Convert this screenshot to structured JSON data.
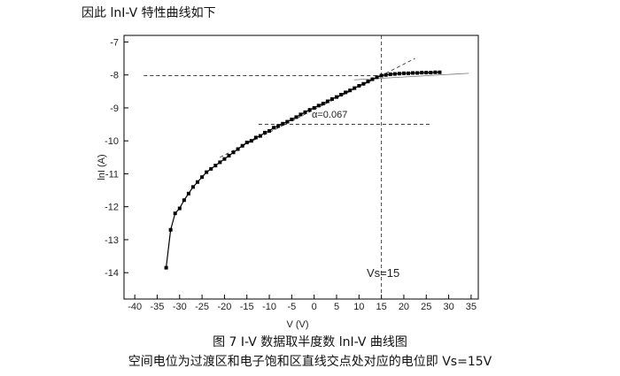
{
  "document": {
    "intro": "因此 lnI-V 特性曲线如下",
    "caption": "图 7 I-V 数据取半度数 lnI-V 曲线图",
    "note": "空间电位为过渡区和电子饱和区直线交点处对应的电位即 Vs=15V"
  },
  "chart_data": {
    "type": "line",
    "x_label": "V  (V)",
    "y_label": "lnI (A)",
    "color": "#000000",
    "x": [
      -33,
      -32,
      -31,
      -30,
      -29,
      -28,
      -27,
      -26,
      -25,
      -24,
      -23,
      -22,
      -21,
      -20,
      -19,
      -18,
      -17,
      -16,
      -15,
      -14,
      -13,
      -12,
      -11,
      -10,
      -9,
      -8,
      -7,
      -6,
      -5,
      -4,
      -3,
      -2,
      -1,
      0,
      1,
      2,
      3,
      4,
      5,
      6,
      7,
      8,
      9,
      10,
      11,
      12,
      13,
      14,
      15,
      16,
      17,
      18,
      19,
      20,
      21,
      22,
      23,
      24,
      25,
      26,
      27,
      28
    ],
    "values": [
      -13.85,
      -12.7,
      -12.2,
      -12.05,
      -11.8,
      -11.6,
      -11.4,
      -11.25,
      -11.1,
      -10.95,
      -10.85,
      -10.75,
      -10.65,
      -10.55,
      -10.45,
      -10.35,
      -10.25,
      -10.15,
      -10.05,
      -10.0,
      -9.9,
      -9.85,
      -9.75,
      -9.7,
      -9.6,
      -9.55,
      -9.48,
      -9.42,
      -9.35,
      -9.28,
      -9.2,
      -9.13,
      -9.06,
      -9.0,
      -8.93,
      -8.87,
      -8.8,
      -8.73,
      -8.67,
      -8.6,
      -8.53,
      -8.47,
      -8.4,
      -8.33,
      -8.27,
      -8.2,
      -8.13,
      -8.07,
      -8.02,
      -8.0,
      -7.98,
      -7.97,
      -7.96,
      -7.95,
      -7.95,
      -7.94,
      -7.94,
      -7.93,
      -7.93,
      -7.93,
      -7.92,
      -7.92
    ],
    "xlim": [
      -42.4,
      36.6
    ],
    "xticks": [
      -40,
      -35,
      -30,
      -25,
      -20,
      -15,
      -10,
      -5,
      0,
      5,
      10,
      15,
      20,
      25,
      30,
      35
    ],
    "ylim": [
      -14.8,
      -6.8
    ],
    "yticks": [
      -14,
      -13,
      -12,
      -11,
      -10,
      -9,
      -8,
      -7
    ],
    "reference_lines": [
      {
        "style": "dashed",
        "x": [
          -38,
          15
        ],
        "y": [
          -8.02,
          -8.02
        ]
      },
      {
        "style": "dashed",
        "x": [
          15,
          15
        ],
        "y": [
          -6.8,
          -14.8
        ]
      },
      {
        "style": "dashed",
        "x": [
          -12.4,
          25.7
        ],
        "y": [
          -9.5,
          -9.5
        ]
      },
      {
        "style": "dashed",
        "x": [
          -21,
          22.5
        ],
        "y": [
          -10.5,
          -7.5
        ]
      },
      {
        "style": "solid",
        "x": [
          8.9,
          34.5
        ],
        "y": [
          -8.15,
          -7.95
        ]
      }
    ],
    "annotations": [
      "α=0.067",
      "Vs=15"
    ]
  }
}
